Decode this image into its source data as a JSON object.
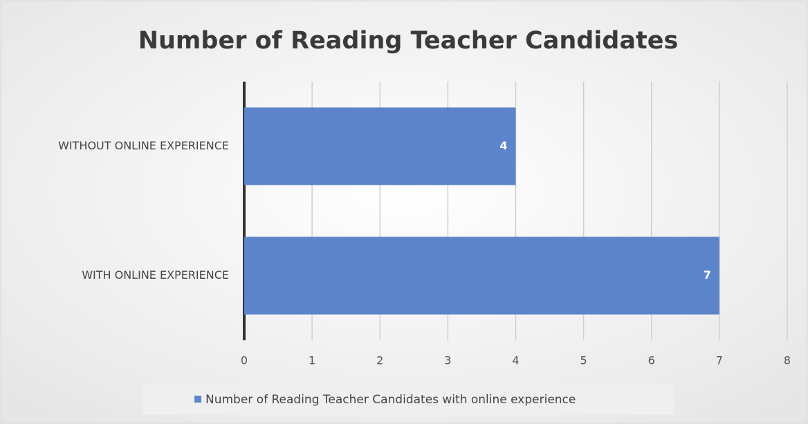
{
  "chart_data": {
    "type": "bar",
    "orientation": "horizontal",
    "title": "Number of Reading Teacher Candidates",
    "categories": [
      "WITHOUT ONLINE EXPERIENCE",
      "WITH ONLINE EXPERIENCE"
    ],
    "series": [
      {
        "name": "Number of Reading Teacher Candidates with online experience",
        "color": "#5b84cb",
        "values": [
          4,
          7
        ]
      }
    ],
    "xlim": [
      0,
      8
    ],
    "xticks": [
      0,
      1,
      2,
      3,
      4,
      5,
      6,
      7,
      8
    ],
    "grid": true,
    "legend": "bottom",
    "data_labels": true
  }
}
